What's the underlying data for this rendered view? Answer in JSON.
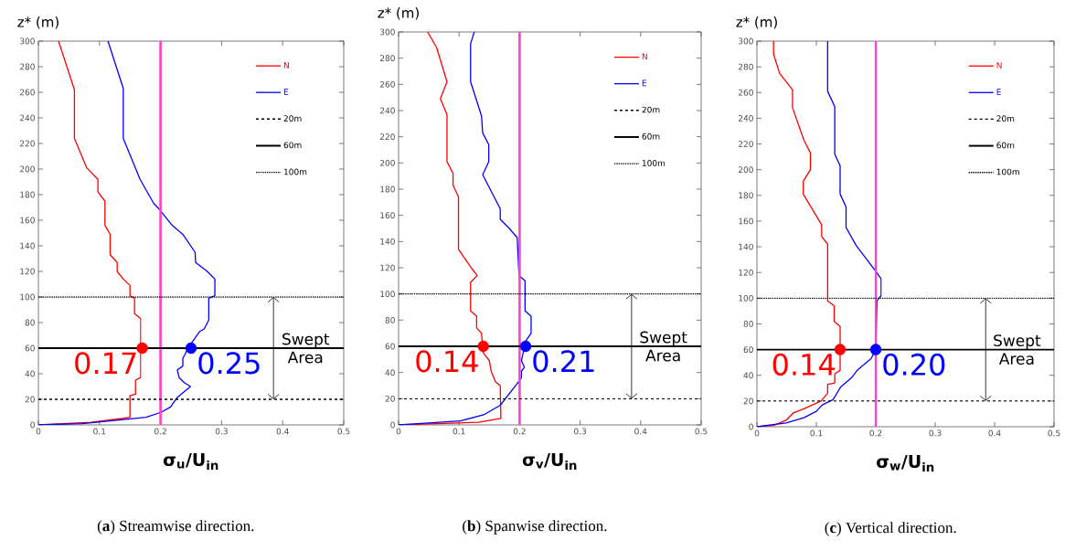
{
  "chart_data": [
    {
      "type": "line",
      "title": "(**a**) Streamwise direction.",
      "xlabel": "σ$_{u}$/U$_{in}$",
      "ylabel": "z* (m)",
      "xlim": [
        0,
        0.5
      ],
      "ylim": [
        0,
        300
      ],
      "xticks": [
        0,
        0.1,
        0.2,
        0.3,
        0.4,
        0.5
      ],
      "yticks": [
        0,
        20,
        40,
        60,
        80,
        100,
        120,
        140,
        160,
        180,
        200,
        220,
        240,
        260,
        280,
        300
      ],
      "legend": "top right",
      "series": [
        {
          "name": "N",
          "color": "#ff0000",
          "x": [
            0.033,
            0.059,
            0.059,
            0.079,
            0.0975,
            0.0975,
            0.109,
            0.109,
            0.1175,
            0.1175,
            0.129,
            0.129,
            0.139,
            0.15,
            0.15,
            0.1575,
            0.1575,
            0.1675,
            0.1675,
            0.159,
            0.159,
            0.15,
            0.15,
            0.1365,
            0.0865,
            0
          ],
          "values": [
            300,
            262,
            224,
            201,
            192,
            182,
            175,
            156,
            149,
            133,
            127,
            120,
            114,
            109,
            101,
            99,
            87,
            83,
            37,
            35,
            24,
            23,
            6,
            5,
            2,
            0
          ]
        },
        {
          "name": "E",
          "color": "#0000ff",
          "x": [
            0.114,
            0.139,
            0.139,
            0.1665,
            0.189,
            0.199,
            0.219,
            0.2365,
            0.2565,
            0.2575,
            0.2765,
            0.289,
            0.289,
            0.279,
            0.279,
            0.2715,
            0.264,
            0.2565,
            0.2465,
            0.2365,
            0.2365,
            0.2275,
            0.2305,
            0.239,
            0.249,
            0.2265,
            0.2165,
            0.2015,
            0.1765,
            0.1365,
            0.0715,
            0
          ],
          "values": [
            300,
            263,
            224,
            192,
            173,
            168,
            156,
            149,
            135,
            127,
            120,
            114,
            101,
            99,
            82,
            75,
            73,
            68,
            61,
            52,
            46,
            43,
            37,
            33,
            30,
            21,
            14,
            10,
            6,
            4,
            1,
            0
          ]
        },
        {
          "type": "scatter",
          "marker": "circle",
          "color": "#ff0000",
          "x": [
            0.17
          ],
          "values": [
            60
          ]
        },
        {
          "type": "scatter",
          "marker": "circle",
          "color": "#0000ff",
          "x": [
            0.25
          ],
          "values": [
            60
          ]
        }
      ],
      "ref_lines": [
        {
          "axis": "x",
          "value": 0.2,
          "color": "#ff40d0",
          "line_style": "solid"
        },
        {
          "axis": "y",
          "value": 20,
          "label": "20m",
          "color": "#000000",
          "line_style": "dashed"
        },
        {
          "axis": "y",
          "value": 60,
          "label": "60m",
          "color": "#000000",
          "line_style": "solid"
        },
        {
          "axis": "y",
          "value": 100,
          "label": "100m",
          "color": "#000000",
          "line_style": "dotted"
        }
      ],
      "annotations": [
        {
          "text": "0.17",
          "x": 0.17,
          "y": 60
        },
        {
          "text": "0.25",
          "x": 0.25,
          "y": 60
        },
        "Swept Area"
      ]
    },
    {
      "type": "line",
      "title": "(**b**) Spanwise direction.",
      "xlabel": "σ$_{v}$/U$_{in}$",
      "ylabel": "z* (m)",
      "xlim": [
        0,
        0.5
      ],
      "ylim": [
        0,
        300
      ],
      "xticks": [
        0,
        0.1,
        0.2,
        0.3,
        0.4,
        0.5
      ],
      "yticks": [
        0,
        20,
        40,
        60,
        80,
        100,
        120,
        140,
        160,
        180,
        200,
        220,
        240,
        260,
        280,
        300
      ],
      "legend": "top right",
      "series": [
        {
          "name": "N",
          "color": "#ff0000",
          "x": [
            0.048,
            0.063,
            0.08,
            0.069,
            0.08,
            0.08,
            0.09,
            0.09,
            0.099,
            0.099,
            0.12,
            0.13,
            0.119,
            0.119,
            0.129,
            0.129,
            0.137,
            0.14,
            0.15,
            0.153,
            0.16,
            0.168,
            0.169,
            0.132,
            0
          ],
          "values": [
            300,
            288,
            262,
            249,
            237,
            201,
            192,
            183,
            174,
            134,
            120,
            114,
            109,
            87,
            83,
            74,
            70,
            55,
            49,
            41,
            33,
            30,
            5,
            2,
            0
          ]
        },
        {
          "name": "E",
          "color": "#0000ff",
          "x": [
            0.125,
            0.119,
            0.119,
            0.137,
            0.139,
            0.149,
            0.149,
            0.139,
            0.168,
            0.168,
            0.183,
            0.196,
            0.199,
            0.209,
            0.209,
            0.219,
            0.219,
            0.21,
            0.203,
            0.208,
            0.203,
            0.203,
            0.195,
            0.168,
            0.142,
            0.102,
            0.032,
            0
          ],
          "values": [
            300,
            291,
            262,
            236,
            223,
            214,
            201,
            191,
            165,
            157,
            150,
            143,
            114,
            110,
            87,
            83,
            70,
            64,
            49,
            44,
            41,
            36,
            31,
            15,
            8,
            3,
            1,
            0
          ]
        },
        {
          "type": "scatter",
          "marker": "circle",
          "color": "#ff0000",
          "x": [
            0.14
          ],
          "values": [
            60
          ]
        },
        {
          "type": "scatter",
          "marker": "circle",
          "color": "#0000ff",
          "x": [
            0.21
          ],
          "values": [
            60
          ]
        }
      ],
      "ref_lines": [
        {
          "axis": "x",
          "value": 0.2,
          "color": "#ff40d0",
          "line_style": "solid"
        },
        {
          "axis": "y",
          "value": 20,
          "label": "20m",
          "color": "#000000",
          "line_style": "dashed"
        },
        {
          "axis": "y",
          "value": 60,
          "label": "60m",
          "color": "#000000",
          "line_style": "solid"
        },
        {
          "axis": "y",
          "value": 100,
          "label": "100m",
          "color": "#000000",
          "line_style": "dotted"
        }
      ],
      "annotations": [
        {
          "text": "0.14",
          "x": 0.14,
          "y": 60
        },
        {
          "text": "0.21",
          "x": 0.21,
          "y": 60
        },
        "Swept Area"
      ]
    },
    {
      "type": "line",
      "title": "(**c**) Vertical direction.",
      "xlabel": "σ$_{w}$/U$_{in}$",
      "ylabel": "z* (m)",
      "xlim": [
        0,
        0.5
      ],
      "ylim": [
        0,
        300
      ],
      "xticks": [
        0,
        0.1,
        0.2,
        0.3,
        0.4,
        0.5
      ],
      "yticks": [
        0,
        20,
        40,
        60,
        80,
        100,
        120,
        140,
        160,
        180,
        200,
        220,
        240,
        260,
        280,
        300
      ],
      "legend": "top right",
      "series": [
        {
          "name": "N",
          "color": "#ff0000",
          "x": [
            0.028,
            0.028,
            0.038,
            0.06,
            0.06,
            0.079,
            0.09,
            0.09,
            0.078,
            0.078,
            0.1,
            0.109,
            0.109,
            0.119,
            0.119,
            0.13,
            0.13,
            0.14,
            0.14,
            0.131,
            0.131,
            0.119,
            0.119,
            0.108,
            0.079,
            0.062,
            0.049,
            0.028,
            0
          ],
          "values": [
            300,
            290,
            275,
            262,
            248,
            223,
            213,
            200,
            191,
            181,
            164,
            157,
            148,
            142,
            98,
            94,
            82,
            78,
            44,
            41,
            34,
            33,
            26,
            20,
            14,
            11,
            5,
            1,
            0
          ]
        },
        {
          "name": "E",
          "color": "#0000ff",
          "x": [
            0.119,
            0.119,
            0.131,
            0.131,
            0.14,
            0.14,
            0.15,
            0.15,
            0.167,
            0.2,
            0.209,
            0.209,
            0.202,
            0.2,
            0.192,
            0.169,
            0.159,
            0.141,
            0.128,
            0.11,
            0.1,
            0.079,
            0.049,
            0
          ],
          "values": [
            300,
            261,
            249,
            212,
            203,
            181,
            171,
            155,
            141,
            121,
            115,
            102,
            98,
            60,
            53,
            44,
            38,
            31,
            21,
            17,
            12,
            7,
            3,
            0
          ]
        },
        {
          "type": "scatter",
          "marker": "circle",
          "color": "#ff0000",
          "x": [
            0.14
          ],
          "values": [
            60
          ]
        },
        {
          "type": "scatter",
          "marker": "circle",
          "color": "#0000ff",
          "x": [
            0.2
          ],
          "values": [
            60
          ]
        }
      ],
      "ref_lines": [
        {
          "axis": "x",
          "value": 0.2,
          "color": "#ff40d0",
          "line_style": "solid"
        },
        {
          "axis": "y",
          "value": 20,
          "label": "20m",
          "color": "#000000",
          "line_style": "dashed"
        },
        {
          "axis": "y",
          "value": 60,
          "label": "60m",
          "color": "#000000",
          "line_style": "solid"
        },
        {
          "axis": "y",
          "value": 100,
          "label": "100m",
          "color": "#000000",
          "line_style": "dotted"
        }
      ],
      "annotations": [
        {
          "text": "0.14",
          "x": 0.14,
          "y": 60
        },
        {
          "text": "0.20",
          "x": 0.2,
          "y": 60
        },
        "Swept Area"
      ]
    }
  ]
}
